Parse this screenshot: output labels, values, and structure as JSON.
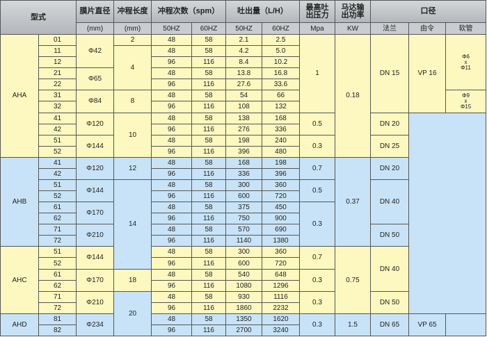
{
  "header": {
    "model": "型式",
    "diaphragm": "膜片直径",
    "stroke": "冲程长度",
    "spm": "冲程次数（spm）",
    "flow": "吐出量（L/H）",
    "pressure": "最高吐\n出压力",
    "power": "马达输\n出功率",
    "port": "口径",
    "diaphragm_unit": "(mm)",
    "stroke_unit": "(mm)",
    "spm_50": "50HZ",
    "spm_60": "60HZ",
    "flow_50": "50HZ",
    "flow_60": "60HZ",
    "pressure_unit": "Mpa",
    "power_unit": "KW",
    "flange": "法兰",
    "union": "由令",
    "hose": "软管"
  },
  "colors": {
    "yellow": "#fcf8bf",
    "blue": "#c8e3f7",
    "header": "#c4c7cb"
  },
  "models": [
    {
      "name": "AHA",
      "rows": 11,
      "bg": "yellow"
    },
    {
      "name": "AHB",
      "rows": 8,
      "bg": "blue"
    },
    {
      "name": "AHC",
      "rows": 6,
      "bg": "yellow"
    },
    {
      "name": "AHD",
      "rows": 2,
      "bg": "blue"
    }
  ],
  "rows": [
    {
      "code": "01",
      "spm50": "48",
      "spm60": "58",
      "flow50": "2.1",
      "flow60": "2.5"
    },
    {
      "code": "11",
      "spm50": "48",
      "spm60": "58",
      "flow50": "4.2",
      "flow60": "5.0"
    },
    {
      "code": "12",
      "spm50": "96",
      "spm60": "116",
      "flow50": "8.4",
      "flow60": "10.2"
    },
    {
      "code": "21",
      "spm50": "48",
      "spm60": "58",
      "flow50": "13.8",
      "flow60": "16.8"
    },
    {
      "code": "22",
      "spm50": "96",
      "spm60": "116",
      "flow50": "27.6",
      "flow60": "33.6"
    },
    {
      "code": "31",
      "spm50": "48",
      "spm60": "58",
      "flow50": "54",
      "flow60": "66"
    },
    {
      "code": "32",
      "spm50": "96",
      "spm60": "116",
      "flow50": "108",
      "flow60": "132"
    },
    {
      "code": "41",
      "spm50": "48",
      "spm60": "58",
      "flow50": "138",
      "flow60": "168"
    },
    {
      "code": "42",
      "spm50": "96",
      "spm60": "116",
      "flow50": "276",
      "flow60": "336"
    },
    {
      "code": "51",
      "spm50": "48",
      "spm60": "58",
      "flow50": "198",
      "flow60": "240"
    },
    {
      "code": "52",
      "spm50": "96",
      "spm60": "116",
      "flow50": "396",
      "flow60": "480"
    },
    {
      "code": "41",
      "spm50": "48",
      "spm60": "58",
      "flow50": "168",
      "flow60": "198"
    },
    {
      "code": "42",
      "spm50": "96",
      "spm60": "116",
      "flow50": "336",
      "flow60": "396"
    },
    {
      "code": "51",
      "spm50": "48",
      "spm60": "58",
      "flow50": "300",
      "flow60": "360"
    },
    {
      "code": "52",
      "spm50": "96",
      "spm60": "116",
      "flow50": "600",
      "flow60": "720"
    },
    {
      "code": "61",
      "spm50": "48",
      "spm60": "58",
      "flow50": "375",
      "flow60": "450"
    },
    {
      "code": "62",
      "spm50": "96",
      "spm60": "116",
      "flow50": "750",
      "flow60": "900"
    },
    {
      "code": "71",
      "spm50": "48",
      "spm60": "58",
      "flow50": "570",
      "flow60": "690"
    },
    {
      "code": "72",
      "spm50": "96",
      "spm60": "116",
      "flow50": "1140",
      "flow60": "1380"
    },
    {
      "code": "51",
      "spm50": "48",
      "spm60": "58",
      "flow50": "300",
      "flow60": "360"
    },
    {
      "code": "52",
      "spm50": "96",
      "spm60": "116",
      "flow50": "600",
      "flow60": "720"
    },
    {
      "code": "61",
      "spm50": "48",
      "spm60": "58",
      "flow50": "540",
      "flow60": "648"
    },
    {
      "code": "62",
      "spm50": "96",
      "spm60": "116",
      "flow50": "1080",
      "flow60": "1296"
    },
    {
      "code": "71",
      "spm50": "48",
      "spm60": "58",
      "flow50": "930",
      "flow60": "1116"
    },
    {
      "code": "72",
      "spm50": "96",
      "spm60": "116",
      "flow50": "1860",
      "flow60": "2232"
    },
    {
      "code": "81",
      "spm50": "48",
      "spm60": "58",
      "flow50": "1350",
      "flow60": "1620"
    },
    {
      "code": "82",
      "spm50": "96",
      "spm60": "116",
      "flow50": "2700",
      "flow60": "3240"
    }
  ],
  "diaphragm": [
    {
      "value": "Φ42",
      "rows": 3,
      "bg": "yellow"
    },
    {
      "value": "Φ65",
      "rows": 2,
      "bg": "yellow"
    },
    {
      "value": "Φ84",
      "rows": 2,
      "bg": "yellow"
    },
    {
      "value": "Φ120",
      "rows": 2,
      "bg": "yellow"
    },
    {
      "value": "Φ144",
      "rows": 2,
      "bg": "yellow"
    },
    {
      "value": "Φ120",
      "rows": 2,
      "bg": "blue"
    },
    {
      "value": "Φ144",
      "rows": 2,
      "bg": "blue"
    },
    {
      "value": "Φ170",
      "rows": 2,
      "bg": "blue"
    },
    {
      "value": "Φ210",
      "rows": 2,
      "bg": "blue"
    },
    {
      "value": "Φ144",
      "rows": 2,
      "bg": "yellow"
    },
    {
      "value": "Φ170",
      "rows": 2,
      "bg": "yellow"
    },
    {
      "value": "Φ210",
      "rows": 2,
      "bg": "yellow"
    },
    {
      "value": "Φ234",
      "rows": 2,
      "bg": "blue"
    }
  ],
  "stroke": [
    {
      "value": "2",
      "rows": 1,
      "bg": "yellow"
    },
    {
      "value": "4",
      "rows": 4,
      "bg": "yellow"
    },
    {
      "value": "8",
      "rows": 2,
      "bg": "yellow"
    },
    {
      "value": "10",
      "rows": 4,
      "bg": "yellow"
    },
    {
      "value": "12",
      "rows": 2,
      "bg": "blue"
    },
    {
      "value": "14",
      "rows": 8,
      "bg": "blue"
    },
    {
      "value": "18",
      "rows": 2,
      "bg": "yellow"
    },
    {
      "value": "20",
      "rows": 4,
      "bg": "blue"
    }
  ],
  "pressure": [
    {
      "value": "1",
      "rows": 7,
      "bg": "yellow"
    },
    {
      "value": "0.5",
      "rows": 2,
      "bg": "yellow"
    },
    {
      "value": "0.3",
      "rows": 2,
      "bg": "yellow"
    },
    {
      "value": "0.7",
      "rows": 2,
      "bg": "blue"
    },
    {
      "value": "0.5",
      "rows": 2,
      "bg": "blue"
    },
    {
      "value": "0.3",
      "rows": 4,
      "bg": "blue"
    },
    {
      "value": "0.7",
      "rows": 2,
      "bg": "yellow"
    },
    {
      "value": "0.3",
      "rows": 2,
      "bg": "yellow"
    },
    {
      "value": "0.3",
      "rows": 2,
      "bg": "yellow"
    },
    {
      "value": "0.3",
      "rows": 2,
      "bg": "blue"
    }
  ],
  "power": [
    {
      "value": "0.18",
      "rows": 11,
      "bg": "yellow"
    },
    {
      "value": "0.37",
      "rows": 8,
      "bg": "blue"
    },
    {
      "value": "0.75",
      "rows": 6,
      "bg": "yellow"
    },
    {
      "value": "1.5",
      "rows": 2,
      "bg": "blue"
    }
  ],
  "flange": [
    {
      "value": "DN 15",
      "rows": 7,
      "bg": "yellow"
    },
    {
      "value": "DN 20",
      "rows": 2,
      "bg": "yellow"
    },
    {
      "value": "DN 25",
      "rows": 2,
      "bg": "yellow"
    },
    {
      "value": "DN 20",
      "rows": 2,
      "bg": "blue"
    },
    {
      "value": "DN 40",
      "rows": 4,
      "bg": "blue"
    },
    {
      "value": "DN 50",
      "rows": 2,
      "bg": "blue"
    },
    {
      "value": "DN 40",
      "rows": 4,
      "bg": "yellow"
    },
    {
      "value": "DN 50",
      "rows": 2,
      "bg": "yellow"
    },
    {
      "value": "DN 65",
      "rows": 2,
      "bg": "blue"
    }
  ],
  "union": [
    {
      "value": "VP 16",
      "rows": 7,
      "bg": "yellow"
    },
    {
      "value": "",
      "rows": 18,
      "bg": "blue",
      "merged_with_hose": true
    },
    {
      "value": "VP 65",
      "rows": 2,
      "bg": "blue"
    }
  ],
  "hose": [
    {
      "value": "Φ6\nx\nΦ11",
      "rows": 5,
      "bg": "yellow"
    },
    {
      "value": "Φ9\nx\nΦ15",
      "rows": 2,
      "bg": "yellow"
    },
    {
      "value": "",
      "rows": 18,
      "bg": null
    },
    {
      "value": "",
      "rows": 2,
      "bg": "blue"
    }
  ]
}
